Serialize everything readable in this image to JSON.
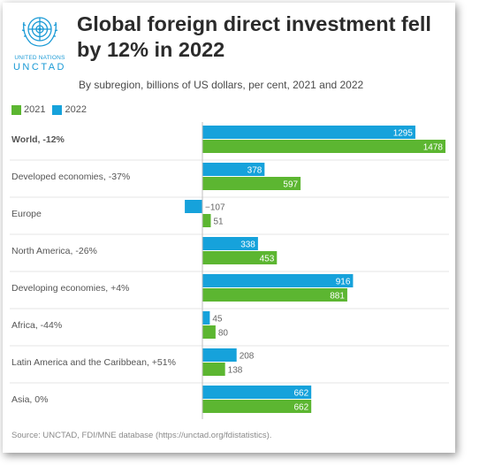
{
  "logo": {
    "line1": "UNITED NATIONS",
    "line2": "UNCTAD",
    "icon": "un-emblem-icon"
  },
  "colors": {
    "series_2021": "#5cb631",
    "series_2022": "#16a2db",
    "brand": "#1a9ad6"
  },
  "chart_data": {
    "type": "bar",
    "orientation": "horizontal",
    "title": "Global foreign direct investment fell by 12% in 2022",
    "subtitle": "By subregion, billions of US dollars, per cent, 2021 and 2022",
    "categories": [
      "World, -12%",
      "Developed economies, -37%",
      "Europe",
      "North America, -26%",
      "Developing economies, +4%",
      "Africa, -44%",
      "Latin America and the Caribbean, +51%",
      "Asia, 0%"
    ],
    "bold_categories": [
      "World, -12%"
    ],
    "series": [
      {
        "name": "2022",
        "values": [
          1295,
          378,
          -107,
          338,
          916,
          45,
          208,
          662
        ],
        "labels": [
          "1295",
          "378",
          "−107",
          "338",
          "916",
          "45",
          "208",
          "662"
        ]
      },
      {
        "name": "2021",
        "values": [
          1478,
          597,
          51,
          453,
          881,
          80,
          138,
          662
        ],
        "labels": [
          "1478",
          "597",
          "51",
          "453",
          "881",
          "80",
          "138",
          "662"
        ]
      }
    ],
    "legend": {
      "position": "top-left",
      "order": [
        "2021",
        "2022"
      ]
    },
    "grid": false,
    "source": "Source: UNCTAD, FDI/MNE database (https://unctad.org/fdistatistics)."
  }
}
